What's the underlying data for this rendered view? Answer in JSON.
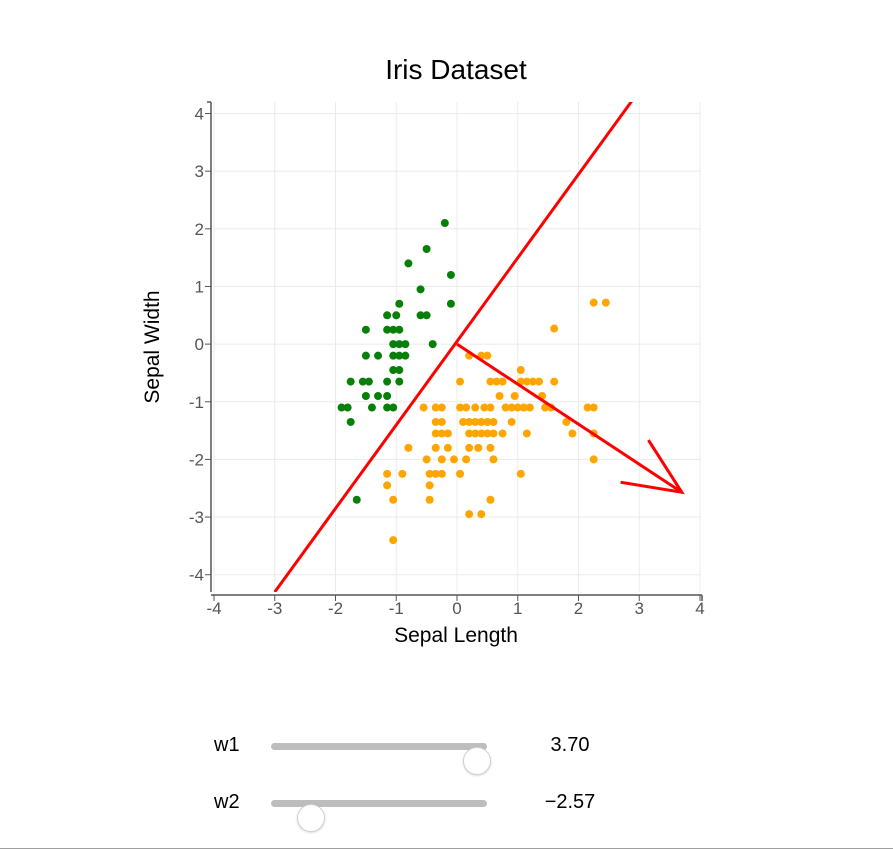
{
  "chart_data": {
    "type": "scatter",
    "title": "Iris Dataset",
    "xlabel": "Sepal Length",
    "ylabel": "Sepal Width",
    "xlim": [
      -4,
      4
    ],
    "ylim": [
      -4.3,
      4.2
    ],
    "xticks": [
      -4,
      -3,
      -2,
      -1,
      0,
      1,
      2,
      3,
      4
    ],
    "yticks": [
      -4,
      -3,
      -2,
      -1,
      0,
      1,
      2,
      3,
      4
    ],
    "grid": true,
    "colors": {
      "green": "#087f08",
      "orange": "#ffa500",
      "line": "#ff0000"
    },
    "series": [
      {
        "color": "#087f08",
        "points": [
          [
            -0.2,
            2.1
          ],
          [
            -0.5,
            1.65
          ],
          [
            -0.8,
            1.4
          ],
          [
            -0.1,
            1.2
          ],
          [
            -0.6,
            0.95
          ],
          [
            -0.95,
            0.7
          ],
          [
            -0.1,
            0.7
          ],
          [
            -1.15,
            0.5
          ],
          [
            -1.0,
            0.5
          ],
          [
            -0.6,
            0.5
          ],
          [
            -0.5,
            0.5
          ],
          [
            -1.5,
            0.25
          ],
          [
            -1.15,
            0.25
          ],
          [
            -1.05,
            0.25
          ],
          [
            -0.95,
            0.25
          ],
          [
            -1.05,
            0.0
          ],
          [
            -0.95,
            0.0
          ],
          [
            -0.85,
            0.0
          ],
          [
            -0.4,
            0.0
          ],
          [
            -1.5,
            -0.2
          ],
          [
            -1.3,
            -0.2
          ],
          [
            -1.05,
            -0.2
          ],
          [
            -0.95,
            -0.2
          ],
          [
            -0.85,
            -0.2
          ],
          [
            -1.05,
            -0.45
          ],
          [
            -0.95,
            -0.45
          ],
          [
            -1.75,
            -0.65
          ],
          [
            -1.55,
            -0.65
          ],
          [
            -1.45,
            -0.65
          ],
          [
            -1.15,
            -0.65
          ],
          [
            -0.95,
            -0.65
          ],
          [
            -1.5,
            -0.9
          ],
          [
            -1.3,
            -0.9
          ],
          [
            -1.15,
            -0.9
          ],
          [
            -1.9,
            -1.1
          ],
          [
            -1.8,
            -1.1
          ],
          [
            -1.4,
            -1.1
          ],
          [
            -1.15,
            -1.1
          ],
          [
            -1.05,
            -1.1
          ],
          [
            -1.75,
            -1.35
          ],
          [
            -1.65,
            -2.7
          ]
        ]
      },
      {
        "color": "#ffa500",
        "points": [
          [
            2.25,
            0.72
          ],
          [
            2.45,
            0.72
          ],
          [
            1.6,
            0.27
          ],
          [
            0.2,
            -0.2
          ],
          [
            0.4,
            -0.2
          ],
          [
            0.5,
            -0.2
          ],
          [
            0.05,
            -0.65
          ],
          [
            0.55,
            -0.65
          ],
          [
            1.05,
            -0.45
          ],
          [
            0.65,
            -0.65
          ],
          [
            0.75,
            -0.65
          ],
          [
            1.05,
            -0.65
          ],
          [
            1.15,
            -0.65
          ],
          [
            1.25,
            -0.65
          ],
          [
            1.35,
            -0.65
          ],
          [
            1.6,
            -0.65
          ],
          [
            0.7,
            -0.9
          ],
          [
            0.95,
            -0.9
          ],
          [
            1.4,
            -0.9
          ],
          [
            -0.55,
            -1.1
          ],
          [
            -0.35,
            -1.1
          ],
          [
            -0.25,
            -1.1
          ],
          [
            0.05,
            -1.1
          ],
          [
            0.15,
            -1.1
          ],
          [
            0.3,
            -1.1
          ],
          [
            0.45,
            -1.1
          ],
          [
            0.55,
            -1.1
          ],
          [
            0.8,
            -1.1
          ],
          [
            0.9,
            -1.1
          ],
          [
            1.0,
            -1.1
          ],
          [
            1.1,
            -1.1
          ],
          [
            1.2,
            -1.1
          ],
          [
            1.45,
            -1.1
          ],
          [
            1.55,
            -1.1
          ],
          [
            2.15,
            -1.1
          ],
          [
            2.25,
            -1.1
          ],
          [
            -0.35,
            -1.35
          ],
          [
            -0.25,
            -1.35
          ],
          [
            0.1,
            -1.35
          ],
          [
            0.2,
            -1.35
          ],
          [
            0.3,
            -1.35
          ],
          [
            0.4,
            -1.35
          ],
          [
            0.5,
            -1.35
          ],
          [
            0.6,
            -1.35
          ],
          [
            0.9,
            -1.35
          ],
          [
            1.8,
            -1.35
          ],
          [
            -0.35,
            -1.55
          ],
          [
            -0.25,
            -1.55
          ],
          [
            -0.15,
            -1.55
          ],
          [
            0.2,
            -1.55
          ],
          [
            0.3,
            -1.55
          ],
          [
            0.4,
            -1.55
          ],
          [
            0.5,
            -1.55
          ],
          [
            0.6,
            -1.55
          ],
          [
            0.75,
            -1.55
          ],
          [
            1.15,
            -1.55
          ],
          [
            1.9,
            -1.55
          ],
          [
            2.25,
            -1.55
          ],
          [
            -0.8,
            -1.8
          ],
          [
            -0.35,
            -1.8
          ],
          [
            -0.15,
            -1.8
          ],
          [
            0.2,
            -1.8
          ],
          [
            0.35,
            -1.8
          ],
          [
            0.55,
            -1.8
          ],
          [
            -0.5,
            -2.0
          ],
          [
            -0.25,
            -2.0
          ],
          [
            -0.05,
            -2.0
          ],
          [
            0.15,
            -2.0
          ],
          [
            0.6,
            -2.0
          ],
          [
            2.25,
            -2.0
          ],
          [
            -1.15,
            -2.25
          ],
          [
            -0.9,
            -2.25
          ],
          [
            -0.45,
            -2.25
          ],
          [
            -0.35,
            -2.25
          ],
          [
            -0.25,
            -2.25
          ],
          [
            0.05,
            -2.25
          ],
          [
            1.05,
            -2.25
          ],
          [
            -1.15,
            -2.45
          ],
          [
            -0.45,
            -2.45
          ],
          [
            -1.05,
            -2.7
          ],
          [
            -0.45,
            -2.7
          ],
          [
            0.55,
            -2.7
          ],
          [
            0.2,
            -2.95
          ],
          [
            0.4,
            -2.95
          ],
          [
            -1.05,
            -3.4
          ]
        ]
      }
    ],
    "decision_line": {
      "color": "#ff0000",
      "x": [
        -3.0,
        2.9
      ],
      "y": [
        -4.3,
        4.25
      ]
    },
    "weight_arrow": {
      "color": "#ff0000",
      "from": [
        0,
        0
      ],
      "to": [
        3.7,
        -2.57
      ]
    }
  },
  "controls": {
    "w1": {
      "label": "w1",
      "value": 3.7,
      "value_text": "3.70",
      "min": -4,
      "max": 4,
      "fraction": 0.95
    },
    "w2": {
      "label": "w2",
      "value": -2.57,
      "value_text": "−2.57",
      "min": -4,
      "max": 4,
      "fraction": 0.18
    }
  }
}
